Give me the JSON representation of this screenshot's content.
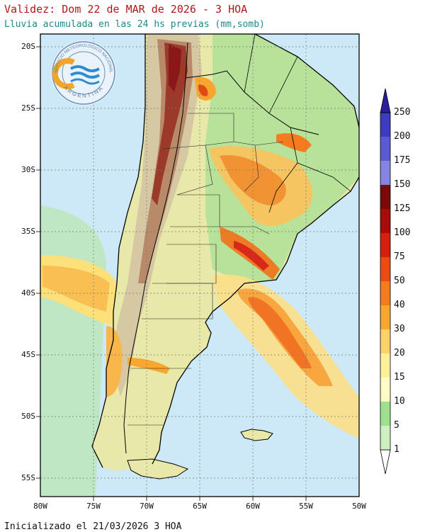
{
  "header": {
    "title": "Validez: Dom 22 de MAR de 2026 - 3 HOA",
    "subtitle": "Lluvia acumulada en las 24 hs previas (mm,somb)"
  },
  "footer": {
    "init": "Inicializado el 21/03/2026 3 HOA"
  },
  "logo": {
    "top_text": "SERVICIO METEOROLÓGICO NACIONAL",
    "bottom_text": "ARGENTINA"
  },
  "map": {
    "lat_ticks": [
      "20S",
      "25S",
      "30S",
      "35S",
      "40S",
      "45S",
      "50S",
      "55S"
    ],
    "lon_ticks": [
      "80W",
      "75W",
      "70W",
      "65W",
      "60W",
      "55W",
      "50W"
    ]
  },
  "colorbar": {
    "labels": [
      "1",
      "5",
      "10",
      "15",
      "20",
      "30",
      "40",
      "50",
      "75",
      "100",
      "125",
      "150",
      "175",
      "200",
      "250"
    ],
    "colors": [
      "#cdf0c0",
      "#9fe08e",
      "#fdfbc6",
      "#fdf09a",
      "#fdd268",
      "#f9a631",
      "#f47b1e",
      "#ea4a13",
      "#d61f0e",
      "#a80c0a",
      "#7a0a0a",
      "#8585e0",
      "#5a5ad2",
      "#3c3cc0",
      "#2a1e9a"
    ]
  }
}
